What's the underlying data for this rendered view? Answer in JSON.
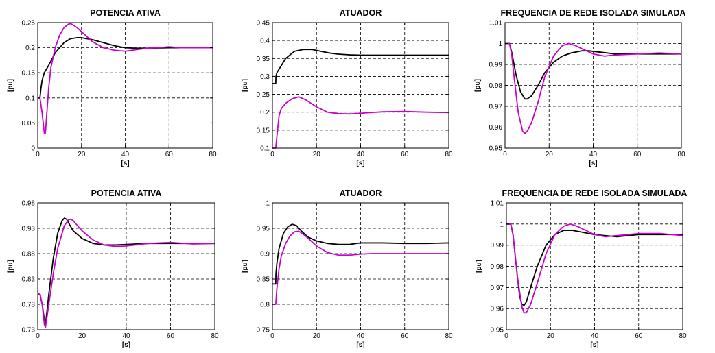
{
  "colors": {
    "series_1": "#000000",
    "series_2": "#cc00cc",
    "grid": "#000000",
    "axes": "#000000"
  },
  "chart_data": [
    {
      "type": "line",
      "title": "POTENCIA ATIVA",
      "xlabel": "[s]",
      "ylabel": "[pu]",
      "xlim": [
        0,
        80
      ],
      "ylim": [
        0,
        0.25
      ],
      "xticks": [
        0,
        20,
        40,
        60,
        80
      ],
      "xtick_labels": [
        "0",
        "20",
        "40",
        "60",
        "80"
      ],
      "yticks": [
        0,
        0.05,
        0.1,
        0.15,
        0.2,
        0.25
      ],
      "ytick_labels": [
        "0",
        "0.05",
        "0.1",
        "0.15",
        "0.2",
        "0.25"
      ],
      "grid": true,
      "series": [
        {
          "x": [
            0,
            1,
            1.5,
            2,
            3,
            5,
            8,
            12,
            15,
            18,
            20,
            25,
            30,
            35,
            40,
            45,
            50,
            60,
            70,
            80
          ],
          "y": [
            0.1,
            0.1,
            0.12,
            0.135,
            0.15,
            0.165,
            0.19,
            0.21,
            0.218,
            0.22,
            0.22,
            0.216,
            0.21,
            0.204,
            0.2,
            0.199,
            0.199,
            0.2,
            0.2,
            0.2
          ]
        },
        {
          "x": [
            0,
            1,
            2,
            3,
            3.5,
            4,
            5,
            6,
            8,
            10,
            12,
            14,
            15,
            16,
            18,
            20,
            25,
            30,
            35,
            40,
            45,
            50,
            55,
            60,
            65,
            70,
            80
          ],
          "y": [
            0.1,
            0.1,
            0.07,
            0.03,
            0.03,
            0.06,
            0.12,
            0.16,
            0.2,
            0.225,
            0.24,
            0.247,
            0.248,
            0.246,
            0.24,
            0.232,
            0.212,
            0.2,
            0.195,
            0.193,
            0.196,
            0.199,
            0.2,
            0.202,
            0.2,
            0.2,
            0.2
          ]
        }
      ]
    },
    {
      "type": "line",
      "title": "ATUADOR",
      "xlabel": "[s]",
      "ylabel": "[pu]",
      "xlim": [
        0,
        80
      ],
      "ylim": [
        0.1,
        0.45
      ],
      "xticks": [
        0,
        20,
        40,
        60,
        80
      ],
      "xtick_labels": [
        "0",
        "20",
        "40",
        "60",
        "80"
      ],
      "yticks": [
        0.1,
        0.15,
        0.2,
        0.25,
        0.3,
        0.35,
        0.4,
        0.45
      ],
      "ytick_labels": [
        "0.1",
        "0.15",
        "0.2",
        "0.25",
        "0.3",
        "0.35",
        "0.4",
        "0.45"
      ],
      "grid": true,
      "series": [
        {
          "x": [
            0,
            1.5,
            1.6,
            2,
            4,
            6,
            10,
            14,
            18,
            22,
            26,
            30,
            35,
            40,
            60,
            80
          ],
          "y": [
            0.28,
            0.28,
            0.3,
            0.31,
            0.33,
            0.35,
            0.37,
            0.375,
            0.375,
            0.37,
            0.365,
            0.362,
            0.36,
            0.359,
            0.359,
            0.359
          ]
        },
        {
          "x": [
            0,
            1.5,
            2,
            3,
            4,
            6,
            9,
            12,
            15,
            20,
            25,
            30,
            35,
            40,
            50,
            60,
            70,
            80
          ],
          "y": [
            0.1,
            0.1,
            0.13,
            0.19,
            0.21,
            0.225,
            0.238,
            0.243,
            0.235,
            0.215,
            0.2,
            0.196,
            0.195,
            0.197,
            0.201,
            0.202,
            0.2,
            0.199
          ]
        }
      ]
    },
    {
      "type": "line",
      "title": "FREQUENCIA DE REDE ISOLADA SIMULADA",
      "xlabel": "[s]",
      "ylabel": "[pu]",
      "xlim": [
        0,
        80
      ],
      "ylim": [
        0.95,
        1.01
      ],
      "xticks": [
        0,
        20,
        40,
        60,
        80
      ],
      "xtick_labels": [
        "0",
        "20",
        "40",
        "60",
        "80"
      ],
      "yticks": [
        0.95,
        0.96,
        0.97,
        0.98,
        0.99,
        1,
        1.01
      ],
      "ytick_labels": [
        "0.95",
        "0.96",
        "0.97",
        "0.98",
        "0.99",
        "1",
        "1.01"
      ],
      "grid": true,
      "series": [
        {
          "x": [
            0,
            2,
            3,
            5,
            7,
            9,
            10,
            12,
            15,
            18,
            22,
            26,
            30,
            35,
            38,
            42,
            50,
            60,
            70,
            80
          ],
          "y": [
            1.0,
            1.0,
            0.996,
            0.985,
            0.977,
            0.9735,
            0.9735,
            0.975,
            0.98,
            0.986,
            0.991,
            0.994,
            0.9955,
            0.9965,
            0.9965,
            0.996,
            0.995,
            0.995,
            0.995,
            0.995
          ]
        },
        {
          "x": [
            0,
            2,
            3,
            4,
            6,
            8,
            9,
            10,
            12,
            15,
            18,
            22,
            26,
            29,
            32,
            36,
            40,
            45,
            50,
            60,
            70,
            80
          ],
          "y": [
            1.0,
            1.0,
            0.995,
            0.985,
            0.967,
            0.958,
            0.957,
            0.958,
            0.962,
            0.972,
            0.984,
            0.994,
            0.999,
            1.0,
            0.999,
            0.997,
            0.995,
            0.994,
            0.9945,
            0.995,
            0.9955,
            0.995
          ]
        }
      ]
    },
    {
      "type": "line",
      "title": "POTENCIA ATIVA",
      "xlabel": "[s]",
      "ylabel": "[pu]",
      "xlim": [
        0,
        80
      ],
      "ylim": [
        0.73,
        0.98
      ],
      "xticks": [
        0,
        20,
        40,
        60,
        80
      ],
      "xtick_labels": [
        "0",
        "20",
        "40",
        "60",
        "80"
      ],
      "yticks": [
        0.73,
        0.78,
        0.83,
        0.88,
        0.93,
        0.98
      ],
      "ytick_labels": [
        "0.73",
        "0.78",
        "0.83",
        "0.88",
        "0.93",
        "0.98"
      ],
      "grid": true,
      "series": [
        {
          "x": [
            0,
            1,
            2,
            3,
            3.5,
            4,
            5,
            7,
            9,
            11,
            12,
            13,
            14,
            16,
            20,
            25,
            30,
            35,
            40,
            50,
            60,
            70,
            80
          ],
          "y": [
            0.8,
            0.8,
            0.78,
            0.75,
            0.74,
            0.76,
            0.8,
            0.87,
            0.92,
            0.945,
            0.95,
            0.948,
            0.94,
            0.925,
            0.91,
            0.9,
            0.897,
            0.897,
            0.898,
            0.9,
            0.9,
            0.9,
            0.9
          ]
        },
        {
          "x": [
            0,
            1,
            2,
            3,
            3.5,
            4,
            5,
            7,
            9,
            12,
            14,
            15,
            16,
            18,
            20,
            25,
            30,
            35,
            40,
            50,
            60,
            70,
            80
          ],
          "y": [
            0.8,
            0.8,
            0.78,
            0.74,
            0.735,
            0.75,
            0.78,
            0.84,
            0.89,
            0.935,
            0.947,
            0.948,
            0.945,
            0.935,
            0.925,
            0.907,
            0.897,
            0.894,
            0.895,
            0.9,
            0.902,
            0.899,
            0.9
          ]
        }
      ]
    },
    {
      "type": "line",
      "title": "ATUADOR",
      "xlabel": "[s]",
      "ylabel": "[pu]",
      "xlim": [
        0,
        80
      ],
      "ylim": [
        0.75,
        1.0
      ],
      "xticks": [
        0,
        20,
        40,
        60,
        80
      ],
      "xtick_labels": [
        "0",
        "20",
        "40",
        "60",
        "80"
      ],
      "yticks": [
        0.75,
        0.8,
        0.85,
        0.9,
        0.95,
        1.0
      ],
      "ytick_labels": [
        "0.75",
        "0.8",
        "0.85",
        "0.9",
        "0.95",
        "1"
      ],
      "grid": true,
      "series": [
        {
          "x": [
            0,
            1.5,
            1.6,
            2,
            3,
            5,
            7,
            9,
            11,
            13,
            16,
            20,
            25,
            30,
            35,
            38,
            40,
            50,
            60,
            70,
            80
          ],
          "y": [
            0.84,
            0.84,
            0.86,
            0.88,
            0.91,
            0.94,
            0.953,
            0.958,
            0.955,
            0.945,
            0.933,
            0.925,
            0.92,
            0.918,
            0.918,
            0.92,
            0.921,
            0.921,
            0.92,
            0.92,
            0.921
          ]
        },
        {
          "x": [
            0,
            1.5,
            2,
            3,
            4,
            6,
            8,
            10,
            12,
            15,
            20,
            25,
            30,
            35,
            40,
            45,
            50,
            60,
            70,
            80
          ],
          "y": [
            0.8,
            0.8,
            0.83,
            0.87,
            0.895,
            0.92,
            0.935,
            0.943,
            0.944,
            0.935,
            0.915,
            0.902,
            0.897,
            0.897,
            0.899,
            0.9,
            0.9,
            0.9,
            0.9,
            0.9
          ]
        }
      ]
    },
    {
      "type": "line",
      "title": "FREQUENCIA DE REDE ISOLADA SIMULADA",
      "xlabel": "[s]",
      "ylabel": "[pu]",
      "xlim": [
        0,
        80
      ],
      "ylim": [
        0.95,
        1.01
      ],
      "xticks": [
        0,
        20,
        40,
        60,
        80
      ],
      "xtick_labels": [
        "0",
        "20",
        "40",
        "60",
        "80"
      ],
      "yticks": [
        0.95,
        0.96,
        0.97,
        0.98,
        0.99,
        1,
        1.01
      ],
      "ytick_labels": [
        "0.95",
        "0.96",
        "0.97",
        "0.98",
        "0.99",
        "1",
        "1.01"
      ],
      "grid": true,
      "series": [
        {
          "x": [
            0,
            2,
            3,
            5,
            6,
            7,
            8,
            9,
            11,
            14,
            18,
            22,
            26,
            30,
            35,
            40,
            50,
            60,
            70,
            80
          ],
          "y": [
            1.0,
            1.0,
            0.995,
            0.975,
            0.966,
            0.962,
            0.9615,
            0.963,
            0.97,
            0.98,
            0.99,
            0.995,
            0.997,
            0.997,
            0.996,
            0.995,
            0.994,
            0.995,
            0.995,
            0.995
          ]
        },
        {
          "x": [
            0,
            2,
            3,
            5,
            7,
            8,
            9,
            11,
            14,
            18,
            22,
            26,
            29,
            32,
            36,
            40,
            45,
            50,
            60,
            70,
            80
          ],
          "y": [
            1.0,
            1.0,
            0.995,
            0.975,
            0.961,
            0.958,
            0.958,
            0.962,
            0.972,
            0.986,
            0.995,
            0.999,
            1.0,
            0.999,
            0.997,
            0.995,
            0.994,
            0.9945,
            0.9955,
            0.9955,
            0.9945
          ]
        }
      ]
    }
  ]
}
